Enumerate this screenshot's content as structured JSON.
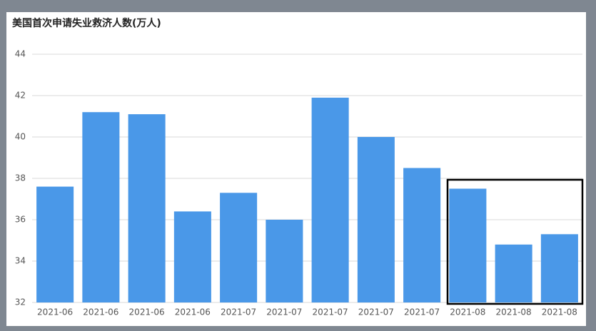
{
  "chart_data": {
    "type": "bar",
    "title": "美国首次申请失业救济人数(万人)",
    "categories": [
      "2021-06",
      "2021-06",
      "2021-06",
      "2021-06",
      "2021-07",
      "2021-07",
      "2021-07",
      "2021-07",
      "2021-07",
      "2021-08",
      "2021-08",
      "2021-08"
    ],
    "values": [
      37.6,
      41.2,
      41.1,
      36.4,
      37.3,
      36.0,
      41.9,
      40.0,
      38.5,
      37.5,
      34.8,
      35.3
    ],
    "color": "#4a98e8",
    "ylim": [
      32,
      44
    ],
    "yticks": [
      32,
      34,
      36,
      38,
      40,
      42,
      44
    ],
    "grid": true
  }
}
